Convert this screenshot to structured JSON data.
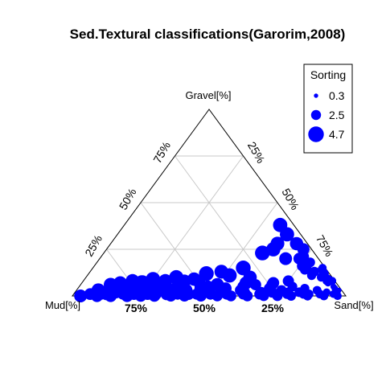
{
  "chart_data": {
    "type": "scatter",
    "subtype": "ternary",
    "title": "Sed.Textural classifications(Garorim,2008)",
    "vertices": {
      "top": "Gravel[%]",
      "left": "Mud[%]",
      "right": "Sand[%]"
    },
    "ticks": {
      "gravel": [
        "75%",
        "50%",
        "25%"
      ],
      "sand": [
        "25%",
        "50%",
        "75%"
      ],
      "mud": [
        "75%",
        "50%",
        "25%"
      ]
    },
    "grid": true,
    "legend": {
      "title": "Sorting",
      "position": "top-right",
      "entries": [
        {
          "label": "0.3",
          "value": 0.3
        },
        {
          "label": "2.5",
          "value": 2.5
        },
        {
          "label": "4.7",
          "value": 4.7
        }
      ]
    },
    "marker_color": "#0000ff",
    "points_columns": [
      "gravel_pct",
      "sand_pct",
      "mud_pct",
      "sorting"
    ],
    "points": [
      [
        38,
        57,
        5,
        4.2
      ],
      [
        33,
        62,
        5,
        4.2
      ],
      [
        28,
        61,
        11,
        4.0
      ],
      [
        28,
        68,
        4,
        3.8
      ],
      [
        25,
        72,
        3,
        3.4
      ],
      [
        23,
        58,
        19,
        4.4
      ],
      [
        25,
        61,
        14,
        4.2
      ],
      [
        20,
        73,
        7,
        3.2
      ],
      [
        20,
        68,
        12,
        3.6
      ],
      [
        18,
        76,
        6,
        3.0
      ],
      [
        15,
        78,
        7,
        2.8
      ],
      [
        13,
        82,
        5,
        2.4
      ],
      [
        10,
        86,
        4,
        2.0
      ],
      [
        8,
        89,
        3,
        1.8
      ],
      [
        18,
        76,
        6,
        2.8
      ],
      [
        16,
        76,
        8,
        2.6
      ],
      [
        14,
        78,
        8,
        2.4
      ],
      [
        11,
        82,
        7,
        2.2
      ],
      [
        7,
        90,
        3,
        1.4
      ],
      [
        5,
        93,
        2,
        1.0
      ],
      [
        3,
        96,
        1,
        0.6
      ],
      [
        21,
        74,
        5,
        3.0
      ],
      [
        18,
        78,
        4,
        2.4
      ],
      [
        15,
        84,
        1,
        1.8
      ],
      [
        14,
        84,
        2,
        1.6
      ],
      [
        11,
        87,
        2,
        1.4
      ],
      [
        12,
        86,
        2,
        2.4
      ],
      [
        9,
        89,
        2,
        2.0
      ],
      [
        8,
        91,
        1,
        1.8
      ],
      [
        4,
        94,
        2,
        1.2
      ],
      [
        2,
        96,
        2,
        1.0
      ],
      [
        15,
        55,
        30,
        4.4
      ],
      [
        13,
        48,
        39,
        4.0
      ],
      [
        11,
        52,
        37,
        4.2
      ],
      [
        12,
        43,
        45,
        4.4
      ],
      [
        9,
        40,
        51,
        3.8
      ],
      [
        10,
        33,
        57,
        4.2
      ],
      [
        8,
        37,
        55,
        3.6
      ],
      [
        7,
        43,
        50,
        3.4
      ],
      [
        5,
        47,
        48,
        3.4
      ],
      [
        4,
        54,
        42,
        3.4
      ],
      [
        3,
        60,
        37,
        3.0
      ],
      [
        2,
        68,
        30,
        2.8
      ],
      [
        1,
        74,
        25,
        2.6
      ],
      [
        10,
        60,
        30,
        3.8
      ],
      [
        7,
        60,
        33,
        3.6
      ],
      [
        7,
        70,
        23,
        3.2
      ],
      [
        6,
        64,
        30,
        3.0
      ],
      [
        4,
        70,
        26,
        2.8
      ],
      [
        3,
        75,
        22,
        2.6
      ],
      [
        2,
        82,
        16,
        2.4
      ],
      [
        1,
        86,
        13,
        2.2
      ],
      [
        5,
        78,
        17,
        2.4
      ],
      [
        4,
        83,
        13,
        2.2
      ],
      [
        8,
        75,
        17,
        3.0
      ],
      [
        5,
        31,
        64,
        4.2
      ],
      [
        6,
        26,
        68,
        4.4
      ],
      [
        7,
        22,
        71,
        4.6
      ],
      [
        5,
        17,
        78,
        4.4
      ],
      [
        4,
        12,
        84,
        4.2
      ],
      [
        3,
        8,
        89,
        4.0
      ],
      [
        6,
        11,
        83,
        4.0
      ],
      [
        5,
        21,
        74,
        3.8
      ],
      [
        4,
        28,
        68,
        3.8
      ],
      [
        3,
        34,
        63,
        3.6
      ],
      [
        3,
        40,
        57,
        3.8
      ],
      [
        2,
        46,
        52,
        3.6
      ],
      [
        2,
        24,
        74,
        3.6
      ],
      [
        2,
        15,
        83,
        3.4
      ],
      [
        1,
        6,
        93,
        3.2
      ],
      [
        1,
        10,
        89,
        3.0
      ],
      [
        1,
        18,
        81,
        3.0
      ],
      [
        1,
        27,
        72,
        3.2
      ],
      [
        1,
        34,
        65,
        3.4
      ],
      [
        1,
        42,
        57,
        3.2
      ],
      [
        1,
        50,
        49,
        3.0
      ],
      [
        1,
        56,
        43,
        3.0
      ],
      [
        1,
        62,
        37,
        2.8
      ],
      [
        1,
        68,
        31,
        2.8
      ],
      [
        1,
        78,
        21,
        2.4
      ],
      [
        1,
        84,
        15,
        2.2
      ],
      [
        1,
        90,
        9,
        2.0
      ],
      [
        1,
        95,
        4,
        1.6
      ],
      [
        0,
        3,
        97,
        3.6
      ],
      [
        0,
        9,
        91,
        3.4
      ],
      [
        0,
        14,
        86,
        3.4
      ],
      [
        0,
        20,
        80,
        3.4
      ],
      [
        0,
        25,
        75,
        3.2
      ],
      [
        0,
        30,
        70,
        3.2
      ],
      [
        0,
        36,
        64,
        3.0
      ],
      [
        0,
        41,
        59,
        3.0
      ],
      [
        0,
        47,
        53,
        3.0
      ],
      [
        0,
        53,
        47,
        2.8
      ],
      [
        0,
        58,
        42,
        2.8
      ],
      [
        0,
        64,
        36,
        2.8
      ],
      [
        0,
        70,
        30,
        2.6
      ],
      [
        0,
        75,
        25,
        2.6
      ],
      [
        0,
        80,
        20,
        2.4
      ],
      [
        0,
        86,
        14,
        2.2
      ],
      [
        0,
        92,
        8,
        2.0
      ],
      [
        0,
        97,
        3,
        1.8
      ],
      [
        1,
        12,
        87,
        3.4
      ],
      [
        1,
        22,
        77,
        3.2
      ],
      [
        1,
        30,
        69,
        3.2
      ],
      [
        1,
        38,
        61,
        3.0
      ],
      [
        1,
        45,
        54,
        3.0
      ],
      [
        2,
        54,
        44,
        3.0
      ],
      [
        2,
        62,
        36,
        2.8
      ],
      [
        2,
        72,
        26,
        2.8
      ],
      [
        2,
        78,
        20,
        2.4
      ],
      [
        3,
        20,
        77,
        3.6
      ],
      [
        3,
        28,
        69,
        3.6
      ],
      [
        4,
        36,
        60,
        3.8
      ],
      [
        4,
        45,
        51,
        3.6
      ],
      [
        6,
        50,
        44,
        3.8
      ],
      [
        6,
        36,
        58,
        3.8
      ],
      [
        8,
        30,
        62,
        4.0
      ],
      [
        9,
        25,
        66,
        4.2
      ],
      [
        8,
        18,
        74,
        4.0
      ],
      [
        7,
        14,
        79,
        3.8
      ],
      [
        5,
        60,
        35,
        3.2
      ],
      [
        6,
        70,
        24,
        3.0
      ],
      [
        3,
        88,
        9,
        2.0
      ],
      [
        2,
        92,
        6,
        1.6
      ]
    ]
  }
}
